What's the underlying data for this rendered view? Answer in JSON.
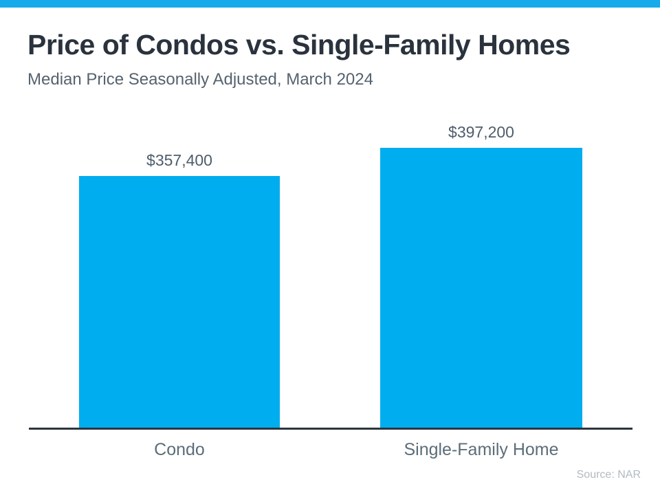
{
  "page": {
    "accent_color": "#17ABEB",
    "background_color": "#FFFFFF"
  },
  "header": {
    "title": "Price of Condos vs. Single-Family Homes",
    "subtitle": "Median Price Seasonally Adjusted, March 2024"
  },
  "chart_data": {
    "type": "bar",
    "title": "Price of Condos vs. Single-Family Homes",
    "subtitle": "Median Price Seasonally Adjusted, March 2024",
    "categories": [
      "Condo",
      "Single-Family Home"
    ],
    "values": [
      357400,
      397200
    ],
    "value_labels": [
      "$357,400",
      "$397,200"
    ],
    "xlabel": "",
    "ylabel": "",
    "ylim": [
      0,
      397200
    ],
    "grid": false,
    "legend": false,
    "bar_color": "#00ADEE",
    "axis_color": "#2B343E",
    "value_label_color": "#4E5D6B",
    "category_label_color": "#5C6D79"
  },
  "footer": {
    "source": "Source: NAR"
  }
}
